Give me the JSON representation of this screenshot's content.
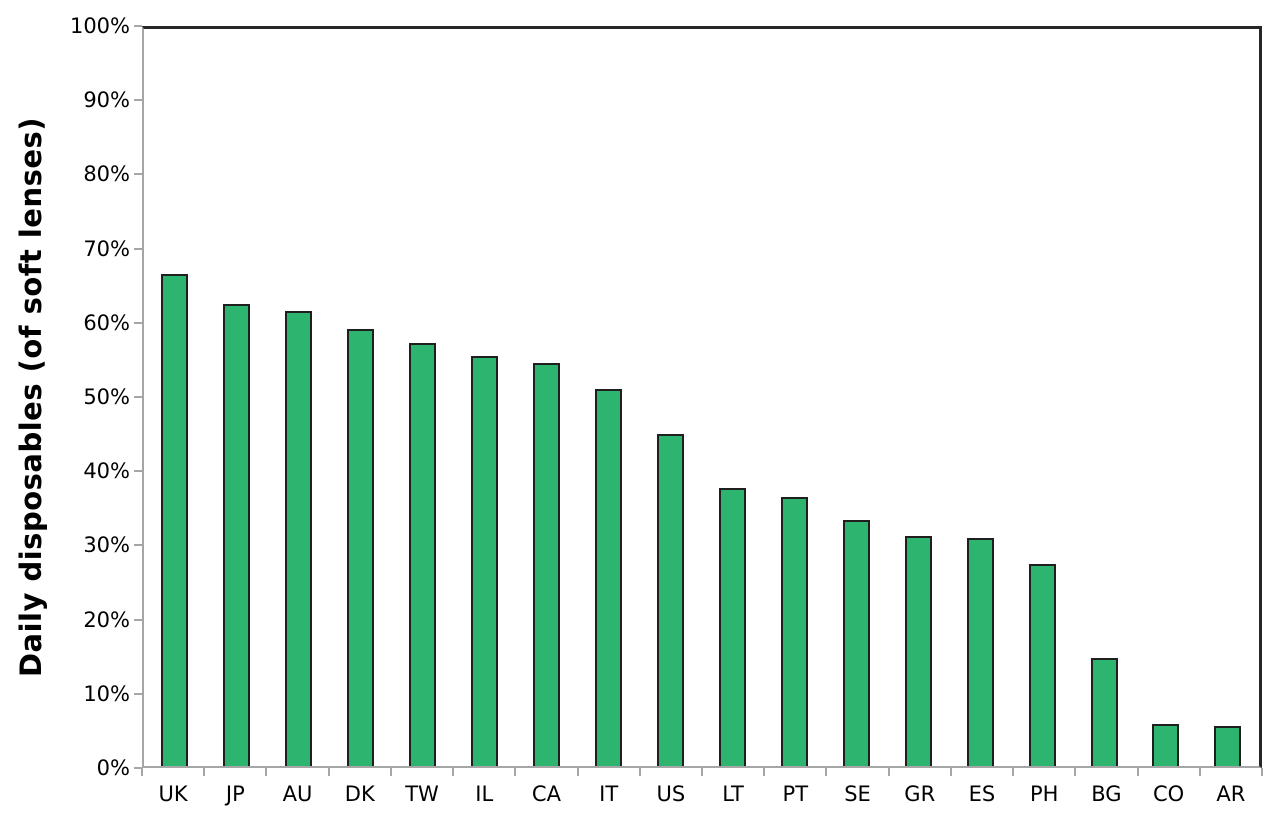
{
  "chart_data": {
    "type": "bar",
    "title": "",
    "xlabel": "",
    "ylabel": "Daily disposables (of soft lenses)",
    "categories": [
      "UK",
      "JP",
      "AU",
      "DK",
      "TW",
      "IL",
      "CA",
      "IT",
      "US",
      "LT",
      "PT",
      "SE",
      "GR",
      "ES",
      "PH",
      "BG",
      "CO",
      "AR"
    ],
    "values": [
      66.7,
      62.7,
      61.7,
      59.3,
      57.4,
      55.7,
      54.7,
      51.1,
      45.0,
      37.7,
      36.5,
      33.4,
      31.2,
      31.0,
      27.4,
      14.6,
      5.7,
      5.4
    ],
    "value_unit": "%",
    "ylim": [
      0,
      100
    ],
    "y_tick_step": 10,
    "y_tick_labels": [
      "0%",
      "10%",
      "20%",
      "30%",
      "40%",
      "50%",
      "60%",
      "70%",
      "80%",
      "90%",
      "100%"
    ],
    "grid": false,
    "legend_position": "none",
    "colors": {
      "bar_fill": "#2DB46E",
      "bar_border": "#1F1F1F",
      "axis_line": "#A6A6A6",
      "plot_border": "#262626",
      "text": "#000000",
      "background": "#FFFFFF"
    }
  }
}
